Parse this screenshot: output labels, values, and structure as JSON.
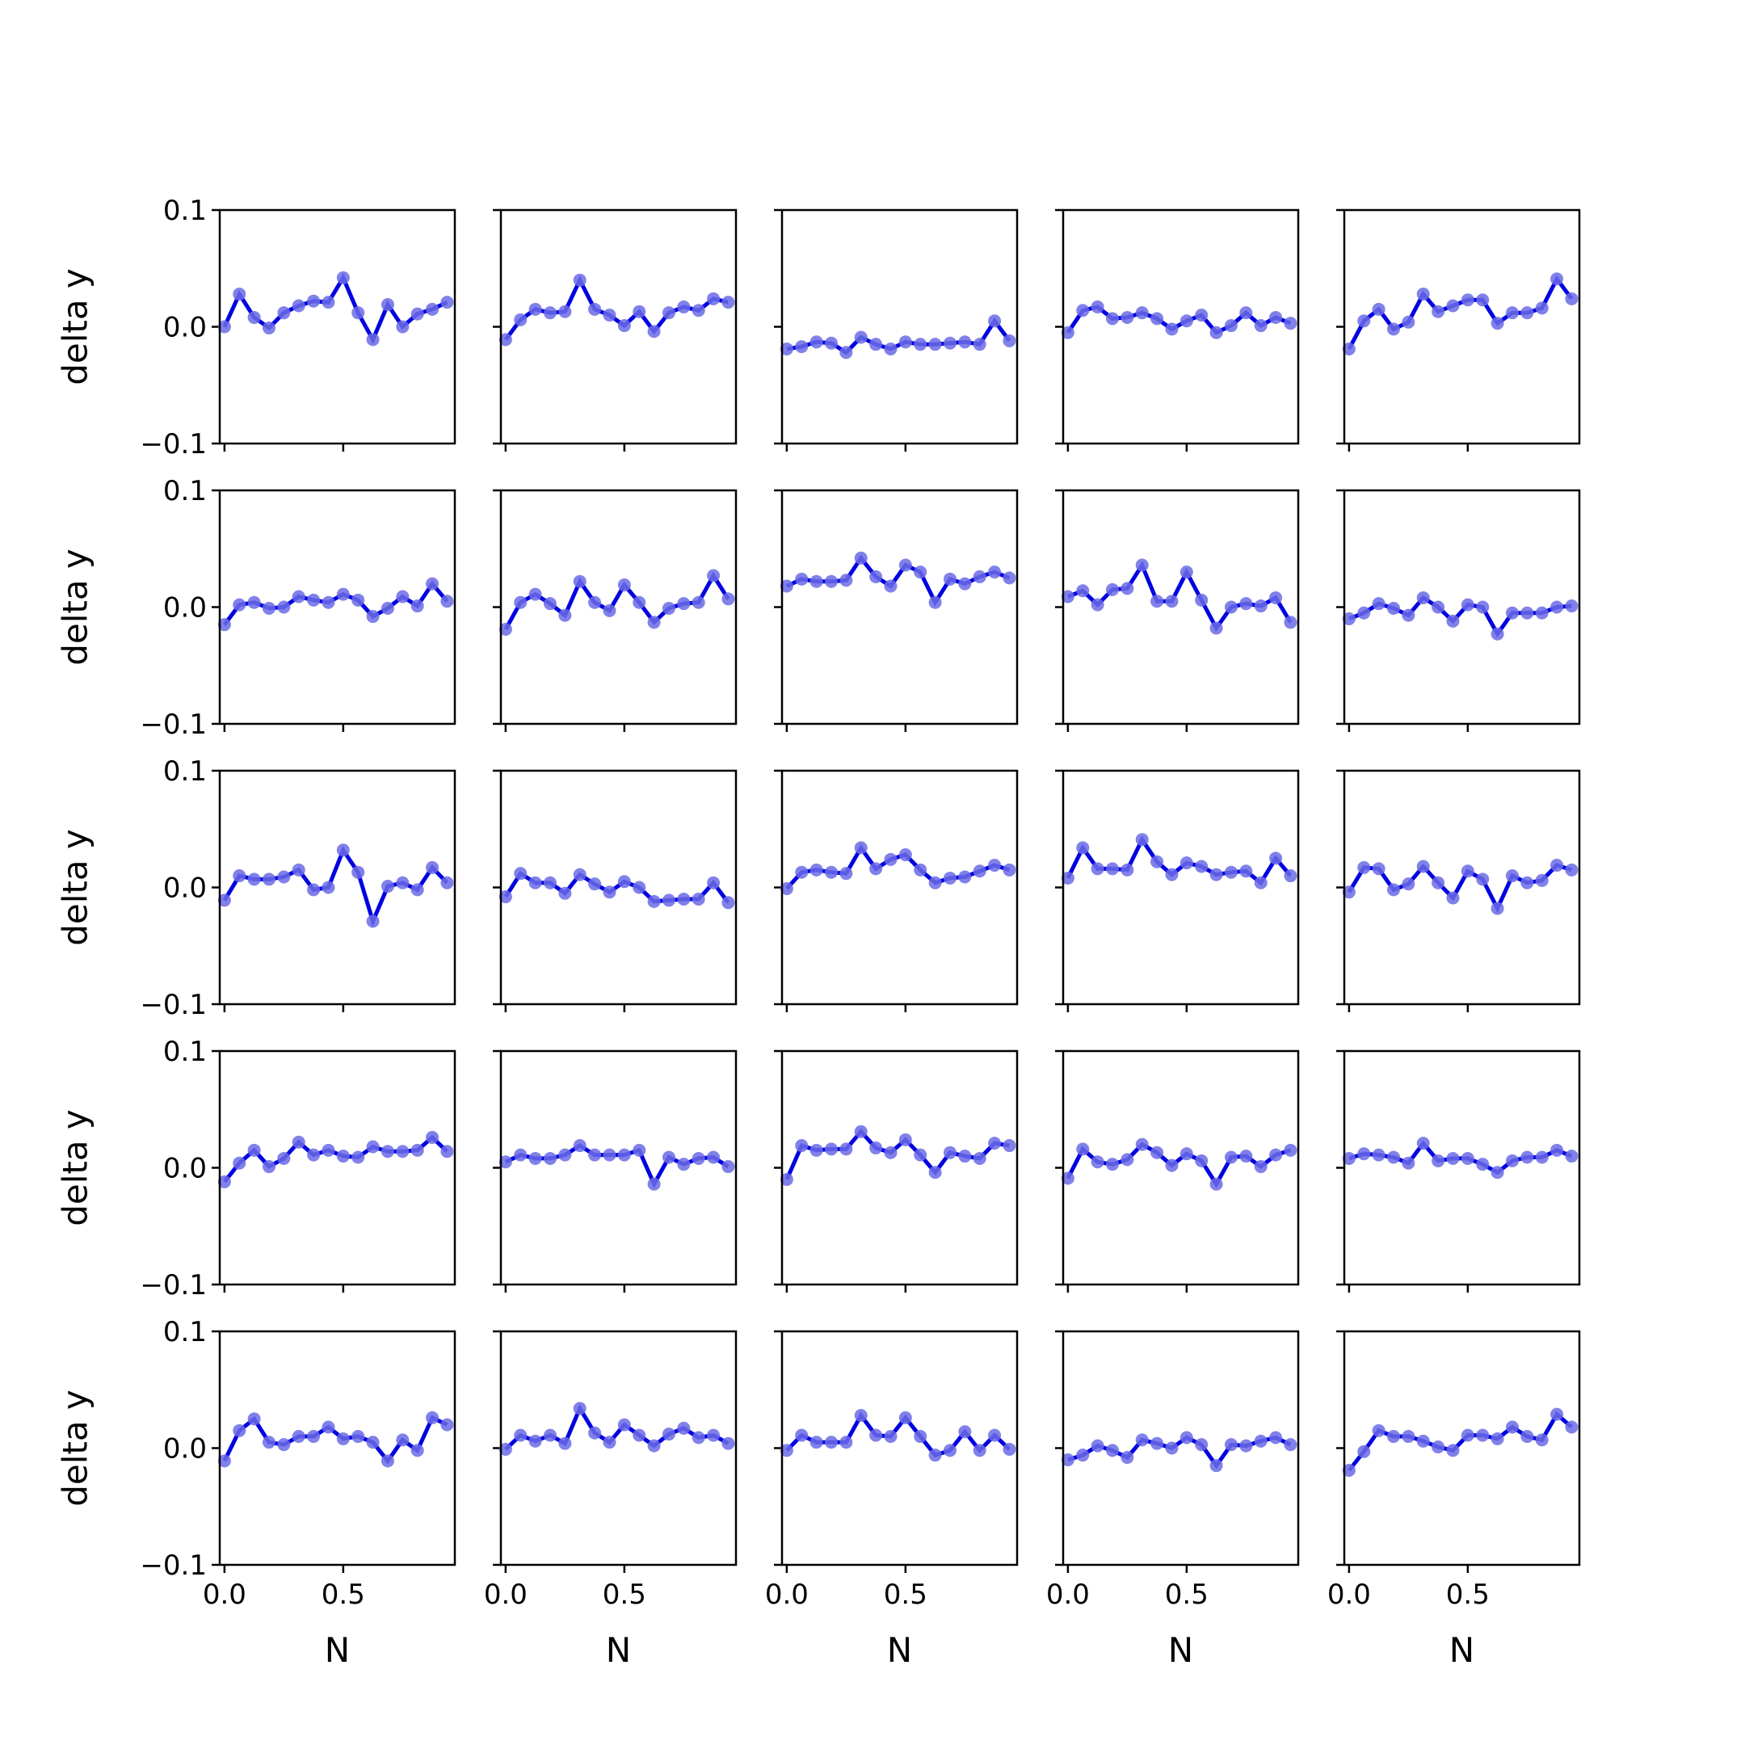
{
  "chart_data": {
    "type": "line",
    "layout": "5x5 grid of small multiples, shared x and y axes",
    "xlabel": "N",
    "ylabel": "delta y",
    "xlim": [
      -0.02,
      0.97
    ],
    "ylim": [
      -0.1,
      0.1
    ],
    "x_ticks": [
      0.0,
      0.5
    ],
    "x_tick_labels": [
      "0.0",
      "0.5"
    ],
    "y_ticks": [
      0.1,
      0.0,
      -0.1
    ],
    "y_tick_labels": [
      "0.1",
      "0.0",
      "−0.1"
    ],
    "grid": false,
    "line_color": "#0000e0",
    "marker_color": "#6b6be6",
    "x": [
      0.0,
      0.0625,
      0.125,
      0.1875,
      0.25,
      0.3125,
      0.375,
      0.4375,
      0.5,
      0.5625,
      0.625,
      0.6875,
      0.75,
      0.8125,
      0.875,
      0.9375
    ],
    "panels": [
      {
        "values": [
          0.0,
          0.028,
          0.008,
          -0.001,
          0.012,
          0.018,
          0.022,
          0.021,
          0.042,
          0.012,
          -0.011,
          0.019,
          0.0,
          0.011,
          0.015,
          0.021
        ]
      },
      {
        "values": [
          -0.011,
          0.006,
          0.015,
          0.012,
          0.013,
          0.04,
          0.015,
          0.01,
          0.001,
          0.013,
          -0.004,
          0.012,
          0.017,
          0.014,
          0.024,
          0.021
        ]
      },
      {
        "values": [
          -0.019,
          -0.017,
          -0.013,
          -0.014,
          -0.022,
          -0.009,
          -0.015,
          -0.019,
          -0.013,
          -0.015,
          -0.015,
          -0.014,
          -0.013,
          -0.015,
          0.005,
          -0.012
        ]
      },
      {
        "values": [
          -0.005,
          0.014,
          0.017,
          0.007,
          0.008,
          0.012,
          0.007,
          -0.002,
          0.005,
          0.01,
          -0.005,
          0.001,
          0.012,
          0.001,
          0.008,
          0.003
        ]
      },
      {
        "values": [
          -0.019,
          0.005,
          0.015,
          -0.002,
          0.004,
          0.028,
          0.013,
          0.018,
          0.023,
          0.023,
          0.003,
          0.012,
          0.012,
          0.016,
          0.041,
          0.024
        ]
      },
      {
        "values": [
          -0.015,
          0.002,
          0.004,
          -0.001,
          0.0,
          0.009,
          0.006,
          0.004,
          0.011,
          0.006,
          -0.008,
          -0.001,
          0.009,
          0.001,
          0.02,
          0.005
        ]
      },
      {
        "values": [
          -0.019,
          0.004,
          0.011,
          0.003,
          -0.007,
          0.022,
          0.004,
          -0.003,
          0.019,
          0.004,
          -0.013,
          -0.001,
          0.003,
          0.004,
          0.027,
          0.007
        ]
      },
      {
        "values": [
          0.018,
          0.024,
          0.022,
          0.022,
          0.023,
          0.042,
          0.026,
          0.018,
          0.036,
          0.03,
          0.004,
          0.024,
          0.02,
          0.026,
          0.03,
          0.025
        ]
      },
      {
        "values": [
          0.009,
          0.014,
          0.002,
          0.015,
          0.016,
          0.036,
          0.005,
          0.005,
          0.03,
          0.006,
          -0.018,
          0.0,
          0.003,
          0.001,
          0.008,
          -0.013
        ]
      },
      {
        "values": [
          -0.01,
          -0.005,
          0.003,
          -0.001,
          -0.007,
          0.008,
          0.0,
          -0.012,
          0.002,
          0.0,
          -0.023,
          -0.005,
          -0.005,
          -0.005,
          0.0,
          0.001
        ]
      },
      {
        "values": [
          -0.011,
          0.01,
          0.007,
          0.007,
          0.009,
          0.015,
          -0.002,
          0.0,
          0.032,
          0.013,
          -0.029,
          0.001,
          0.004,
          -0.002,
          0.017,
          0.004
        ]
      },
      {
        "values": [
          -0.008,
          0.012,
          0.004,
          0.004,
          -0.005,
          0.011,
          0.003,
          -0.004,
          0.005,
          0.0,
          -0.012,
          -0.011,
          -0.01,
          -0.01,
          0.004,
          -0.013
        ]
      },
      {
        "values": [
          -0.001,
          0.013,
          0.015,
          0.013,
          0.012,
          0.034,
          0.016,
          0.024,
          0.028,
          0.015,
          0.004,
          0.008,
          0.009,
          0.014,
          0.019,
          0.015
        ]
      },
      {
        "values": [
          0.008,
          0.034,
          0.016,
          0.016,
          0.015,
          0.041,
          0.022,
          0.011,
          0.021,
          0.018,
          0.011,
          0.013,
          0.014,
          0.004,
          0.025,
          0.01
        ]
      },
      {
        "values": [
          -0.004,
          0.017,
          0.016,
          -0.002,
          0.003,
          0.018,
          0.004,
          -0.009,
          0.014,
          0.007,
          -0.018,
          0.01,
          0.004,
          0.006,
          0.019,
          0.015
        ]
      },
      {
        "values": [
          -0.012,
          0.004,
          0.015,
          0.001,
          0.008,
          0.022,
          0.011,
          0.015,
          0.01,
          0.009,
          0.018,
          0.014,
          0.014,
          0.015,
          0.026,
          0.014
        ]
      },
      {
        "values": [
          0.005,
          0.011,
          0.008,
          0.008,
          0.011,
          0.019,
          0.011,
          0.011,
          0.011,
          0.015,
          -0.014,
          0.009,
          0.003,
          0.008,
          0.009,
          0.001
        ]
      },
      {
        "values": [
          -0.01,
          0.019,
          0.015,
          0.016,
          0.016,
          0.031,
          0.017,
          0.013,
          0.024,
          0.011,
          -0.004,
          0.013,
          0.01,
          0.008,
          0.021,
          0.019
        ]
      },
      {
        "values": [
          -0.009,
          0.016,
          0.005,
          0.003,
          0.007,
          0.02,
          0.013,
          0.002,
          0.012,
          0.006,
          -0.014,
          0.009,
          0.01,
          0.001,
          0.011,
          0.015
        ]
      },
      {
        "values": [
          0.008,
          0.012,
          0.011,
          0.009,
          0.004,
          0.021,
          0.006,
          0.008,
          0.008,
          0.003,
          -0.004,
          0.006,
          0.009,
          0.009,
          0.015,
          0.01
        ]
      },
      {
        "values": [
          -0.011,
          0.015,
          0.025,
          0.005,
          0.003,
          0.01,
          0.01,
          0.018,
          0.008,
          0.01,
          0.005,
          -0.011,
          0.007,
          -0.002,
          0.026,
          0.02
        ]
      },
      {
        "values": [
          -0.001,
          0.011,
          0.006,
          0.011,
          0.004,
          0.034,
          0.013,
          0.005,
          0.02,
          0.011,
          0.002,
          0.012,
          0.017,
          0.009,
          0.011,
          0.004
        ]
      },
      {
        "values": [
          -0.002,
          0.011,
          0.005,
          0.005,
          0.005,
          0.028,
          0.011,
          0.01,
          0.026,
          0.01,
          -0.006,
          -0.002,
          0.014,
          -0.002,
          0.011,
          -0.001
        ]
      },
      {
        "values": [
          -0.01,
          -0.006,
          0.002,
          -0.002,
          -0.008,
          0.007,
          0.004,
          0.0,
          0.009,
          0.003,
          -0.015,
          0.003,
          0.002,
          0.006,
          0.009,
          0.003
        ]
      },
      {
        "values": [
          -0.019,
          -0.003,
          0.015,
          0.01,
          0.01,
          0.006,
          0.001,
          -0.002,
          0.011,
          0.011,
          0.008,
          0.018,
          0.01,
          0.007,
          0.029,
          0.018
        ]
      }
    ]
  }
}
